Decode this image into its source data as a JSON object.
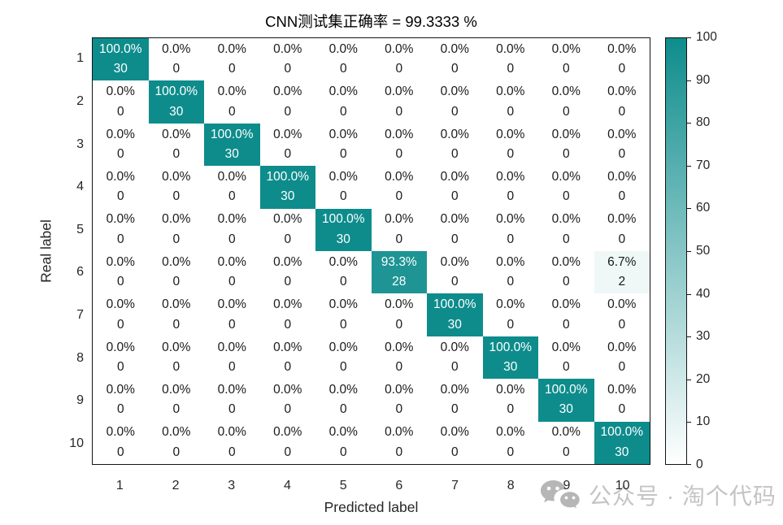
{
  "chart_data": {
    "type": "heatmap",
    "subtype": "confusion-matrix",
    "title": "CNN测试集正确率 = 99.3333 %",
    "xlabel": "Predicted label",
    "ylabel": "Real label",
    "x_tick_labels": [
      "1",
      "2",
      "3",
      "4",
      "5",
      "6",
      "7",
      "8",
      "9",
      "10"
    ],
    "y_tick_labels": [
      "1",
      "2",
      "3",
      "4",
      "5",
      "6",
      "7",
      "8",
      "9",
      "10"
    ],
    "cell_format": "percent over count",
    "matrix_percent": [
      [
        100.0,
        0.0,
        0.0,
        0.0,
        0.0,
        0.0,
        0.0,
        0.0,
        0.0,
        0.0
      ],
      [
        0.0,
        100.0,
        0.0,
        0.0,
        0.0,
        0.0,
        0.0,
        0.0,
        0.0,
        0.0
      ],
      [
        0.0,
        0.0,
        100.0,
        0.0,
        0.0,
        0.0,
        0.0,
        0.0,
        0.0,
        0.0
      ],
      [
        0.0,
        0.0,
        0.0,
        100.0,
        0.0,
        0.0,
        0.0,
        0.0,
        0.0,
        0.0
      ],
      [
        0.0,
        0.0,
        0.0,
        0.0,
        100.0,
        0.0,
        0.0,
        0.0,
        0.0,
        0.0
      ],
      [
        0.0,
        0.0,
        0.0,
        0.0,
        0.0,
        93.3,
        0.0,
        0.0,
        0.0,
        6.7
      ],
      [
        0.0,
        0.0,
        0.0,
        0.0,
        0.0,
        0.0,
        100.0,
        0.0,
        0.0,
        0.0
      ],
      [
        0.0,
        0.0,
        0.0,
        0.0,
        0.0,
        0.0,
        0.0,
        100.0,
        0.0,
        0.0
      ],
      [
        0.0,
        0.0,
        0.0,
        0.0,
        0.0,
        0.0,
        0.0,
        0.0,
        100.0,
        0.0
      ],
      [
        0.0,
        0.0,
        0.0,
        0.0,
        0.0,
        0.0,
        0.0,
        0.0,
        0.0,
        100.0
      ]
    ],
    "matrix_count": [
      [
        30,
        0,
        0,
        0,
        0,
        0,
        0,
        0,
        0,
        0
      ],
      [
        0,
        30,
        0,
        0,
        0,
        0,
        0,
        0,
        0,
        0
      ],
      [
        0,
        0,
        30,
        0,
        0,
        0,
        0,
        0,
        0,
        0
      ],
      [
        0,
        0,
        0,
        30,
        0,
        0,
        0,
        0,
        0,
        0
      ],
      [
        0,
        0,
        0,
        0,
        30,
        0,
        0,
        0,
        0,
        0
      ],
      [
        0,
        0,
        0,
        0,
        0,
        28,
        0,
        0,
        0,
        2
      ],
      [
        0,
        0,
        0,
        0,
        0,
        0,
        30,
        0,
        0,
        0
      ],
      [
        0,
        0,
        0,
        0,
        0,
        0,
        0,
        30,
        0,
        0
      ],
      [
        0,
        0,
        0,
        0,
        0,
        0,
        0,
        0,
        30,
        0
      ],
      [
        0,
        0,
        0,
        0,
        0,
        0,
        0,
        0,
        0,
        30
      ]
    ],
    "colorbar": {
      "min": 0,
      "max": 100,
      "tick_labels": [
        "0",
        "10",
        "20",
        "30",
        "40",
        "50",
        "60",
        "70",
        "80",
        "90",
        "100"
      ],
      "position": "right"
    },
    "colors": {
      "high": "#0E8C8C",
      "low": "#FFFFFF",
      "cell_text_dark": "#1a1a1a",
      "cell_text_light": "#ffffff",
      "axis": "#141414"
    },
    "grid": false,
    "legend": "colorbar"
  },
  "watermark": {
    "icon": "wechat-icon",
    "text": "公众号 · 淘个代码",
    "color": "#c4c4c4"
  }
}
